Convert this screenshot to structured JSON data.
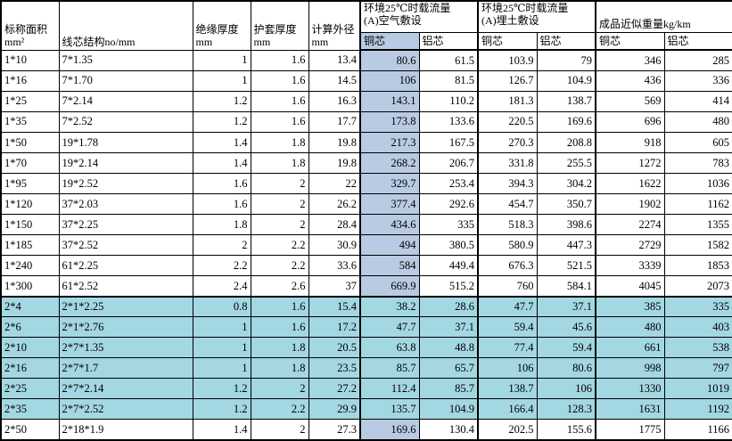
{
  "colors": {
    "column_highlight": "#b9cbe3",
    "row_highlight": "#a3d7e2",
    "grid": "#000000"
  },
  "table": {
    "header": {
      "area_line1": "标称面积",
      "area_line2": "mm²",
      "core_structure": "线芯结构no/mm",
      "insulation_line1": "绝缘厚度",
      "insulation_line2": "mm",
      "sheath_line1": "护套厚度",
      "sheath_line2": "mm",
      "diameter_line1": "计算外径",
      "diameter_line2": "mm",
      "air_group_line1": "环境25℃时载流量",
      "air_group_line2": "(A)空气敷设",
      "soil_group_line1": "环境25℃时载流量",
      "soil_group_line2": "(A)埋土敷设",
      "weight_group": "成品近似重量kg/km"
    },
    "subheaders": [
      "铜芯",
      "铝芯",
      "铜芯",
      "铝芯",
      "铜芯",
      "铝芯"
    ],
    "column_keys": [
      "area",
      "structure",
      "insulation",
      "sheath",
      "diameter",
      "air-cu",
      "air-al",
      "soil-cu",
      "soil-al",
      "wt-cu",
      "wt-al"
    ],
    "rows": [
      {
        "highlight": false,
        "cells": [
          "1*10",
          "7*1.35",
          "1",
          "1.6",
          "13.4",
          "80.6",
          "61.5",
          "103.9",
          "79",
          "346",
          "285"
        ]
      },
      {
        "highlight": false,
        "cells": [
          "1*16",
          "7*1.70",
          "1",
          "1.6",
          "14.5",
          "106",
          "81.5",
          "126.7",
          "104.9",
          "436",
          "336"
        ]
      },
      {
        "highlight": false,
        "cells": [
          "1*25",
          "7*2.14",
          "1.2",
          "1.6",
          "16.3",
          "143.1",
          "110.2",
          "181.3",
          "138.7",
          "569",
          "414"
        ]
      },
      {
        "highlight": false,
        "cells": [
          "1*35",
          "7*2.52",
          "1.2",
          "1.6",
          "17.7",
          "173.8",
          "133.6",
          "220.5",
          "169.6",
          "696",
          "480"
        ]
      },
      {
        "highlight": false,
        "cells": [
          "1*50",
          "19*1.78",
          "1.4",
          "1.8",
          "19.8",
          "217.3",
          "167.5",
          "270.3",
          "208.8",
          "918",
          "605"
        ]
      },
      {
        "highlight": false,
        "cells": [
          "1*70",
          "19*2.14",
          "1.4",
          "1.8",
          "19.8",
          "268.2",
          "206.7",
          "331.8",
          "255.5",
          "1272",
          "783"
        ]
      },
      {
        "highlight": false,
        "cells": [
          "1*95",
          "19*2.52",
          "1.6",
          "2",
          "22",
          "329.7",
          "253.4",
          "394.3",
          "304.2",
          "1622",
          "1036"
        ]
      },
      {
        "highlight": false,
        "cells": [
          "1*120",
          "37*2.03",
          "1.6",
          "2",
          "26.2",
          "377.4",
          "292.6",
          "454.7",
          "350.7",
          "1902",
          "1162"
        ]
      },
      {
        "highlight": false,
        "cells": [
          "1*150",
          "37*2.25",
          "1.8",
          "2",
          "28.4",
          "434.6",
          "335",
          "518.3",
          "398.6",
          "2274",
          "1355"
        ]
      },
      {
        "highlight": false,
        "cells": [
          "1*185",
          "37*2.52",
          "2",
          "2.2",
          "30.9",
          "494",
          "380.5",
          "580.9",
          "447.3",
          "2729",
          "1582"
        ]
      },
      {
        "highlight": false,
        "cells": [
          "1*240",
          "61*2.25",
          "2.2",
          "2.2",
          "33.6",
          "584",
          "449.4",
          "676.3",
          "521.5",
          "3339",
          "1853"
        ]
      },
      {
        "highlight": false,
        "cells": [
          "1*300",
          "61*2.52",
          "2.4",
          "2.6",
          "37",
          "669.9",
          "515.2",
          "760",
          "584.1",
          "4045",
          "2073"
        ]
      },
      {
        "highlight": true,
        "cells": [
          "2*4",
          "2*1*2.25",
          "0.8",
          "1.6",
          "15.4",
          "38.2",
          "28.6",
          "47.7",
          "37.1",
          "385",
          "335"
        ]
      },
      {
        "highlight": true,
        "cells": [
          "2*6",
          "2*1*2.76",
          "1",
          "1.6",
          "17.2",
          "47.7",
          "37.1",
          "59.4",
          "45.6",
          "480",
          "403"
        ]
      },
      {
        "highlight": true,
        "cells": [
          "2*10",
          "2*7*1.35",
          "1",
          "1.8",
          "20.5",
          "63.8",
          "48.8",
          "77.4",
          "59.4",
          "661",
          "538"
        ]
      },
      {
        "highlight": true,
        "cells": [
          "2*16",
          "2*7*1.7",
          "1",
          "1.8",
          "23.5",
          "85.7",
          "65.7",
          "106",
          "80.6",
          "998",
          "797"
        ]
      },
      {
        "highlight": true,
        "cells": [
          "2*25",
          "2*7*2.14",
          "1.2",
          "2",
          "27.2",
          "112.4",
          "85.7",
          "138.7",
          "106",
          "1330",
          "1019"
        ]
      },
      {
        "highlight": true,
        "cells": [
          "2*35",
          "2*7*2.52",
          "1.2",
          "2.2",
          "29.9",
          "135.7",
          "104.9",
          "166.4",
          "128.3",
          "1631",
          "1192"
        ]
      },
      {
        "highlight": false,
        "cells": [
          "2*50",
          "2*18*1.9",
          "1.4",
          "2",
          "27.3",
          "169.6",
          "130.4",
          "202.5",
          "155.6",
          "1775",
          "1166"
        ]
      }
    ]
  }
}
